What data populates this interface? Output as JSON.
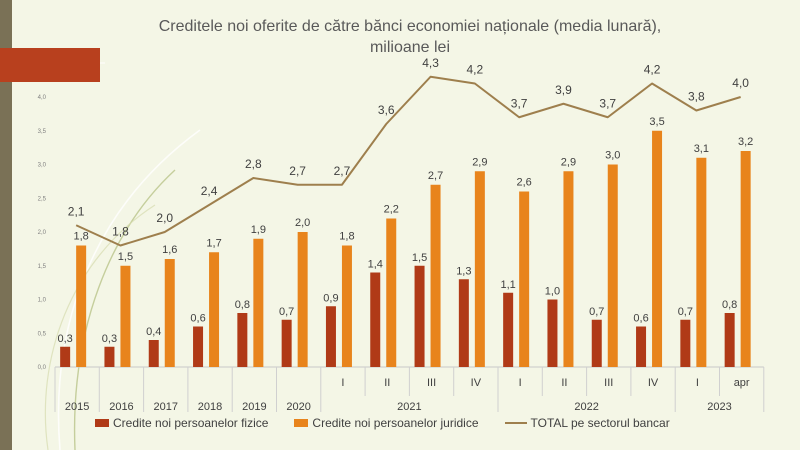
{
  "title": {
    "line1": "Creditele noi oferite de către bănci economiei naționale (media lunară),",
    "line2": "milioane lei"
  },
  "chart_data": {
    "type": "bar",
    "title": "Creditele noi oferite de către bănci economiei naționale (media lunară), milioane lei",
    "xlabel": "",
    "ylabel": "",
    "ylim": [
      0,
      4.5
    ],
    "yticks": [
      "0,0",
      "0,5",
      "1,0",
      "1,5",
      "2,0",
      "2,5",
      "3,0",
      "3,5",
      "4,0"
    ],
    "grid": false,
    "legend_position": "bottom",
    "categories": [
      "2015",
      "2016",
      "2017",
      "2018",
      "2019",
      "2020",
      "I",
      "II",
      "III",
      "IV",
      "I",
      "II",
      "III",
      "IV",
      "I",
      "apr"
    ],
    "year_groups": [
      {
        "label": "2021",
        "start": 6,
        "end": 9
      },
      {
        "label": "2022",
        "start": 10,
        "end": 13
      },
      {
        "label": "2023",
        "start": 14,
        "end": 15
      }
    ],
    "series": [
      {
        "name": "Credite noi persoanelor fizice",
        "type": "bar",
        "color": "#b03a17",
        "values": [
          0.3,
          0.3,
          0.4,
          0.6,
          0.8,
          0.7,
          0.9,
          1.4,
          1.5,
          1.3,
          1.1,
          1.0,
          0.7,
          0.6,
          0.7,
          0.8
        ],
        "labels": [
          "0,3",
          "0,3",
          "0,4",
          "0,6",
          "0,8",
          "0,7",
          "0,9",
          "1,4",
          "1,5",
          "1,3",
          "1,1",
          "1,0",
          "0,7",
          "0,6",
          "0,7",
          "0,8"
        ]
      },
      {
        "name": "Credite noi persoanelor juridice",
        "type": "bar",
        "color": "#e8841c",
        "values": [
          1.8,
          1.5,
          1.6,
          1.7,
          1.9,
          2.0,
          1.8,
          2.2,
          2.7,
          2.9,
          2.6,
          2.9,
          3.0,
          3.5,
          3.1,
          3.2
        ],
        "labels": [
          "1,8",
          "1,5",
          "1,6",
          "1,7",
          "1,9",
          "2,0",
          "1,8",
          "2,2",
          "2,7",
          "2,9",
          "2,6",
          "2,9",
          "3,0",
          "3,5",
          "3,1",
          "3,2"
        ]
      },
      {
        "name": "TOTAL pe sectorul bancar",
        "type": "line",
        "color": "#9e7f4d",
        "values": [
          2.1,
          1.8,
          2.0,
          2.4,
          2.8,
          2.7,
          2.7,
          3.6,
          4.3,
          4.2,
          3.7,
          3.9,
          3.7,
          4.2,
          3.8,
          4.0
        ],
        "labels": [
          "2,1",
          "1,8",
          "2,0",
          "2,4",
          "2,8",
          "2,7",
          "2,7",
          "3,6",
          "4,3",
          "4,2",
          "3,7",
          "3,9",
          "3,7",
          "4,2",
          "3,8",
          "4,0"
        ]
      }
    ]
  }
}
